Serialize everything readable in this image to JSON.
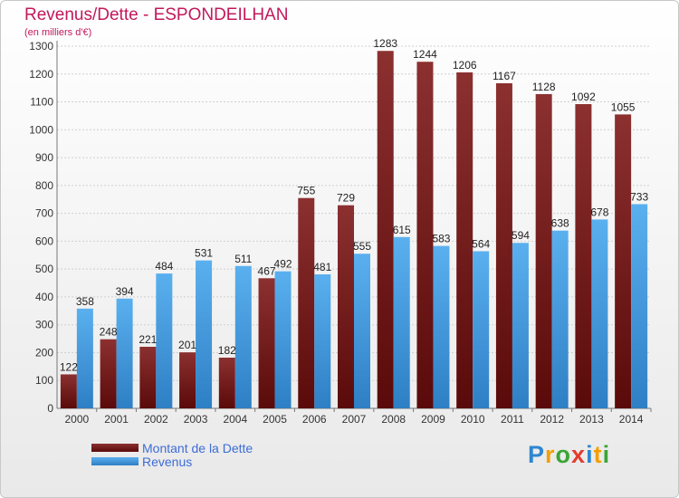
{
  "title": "Revenus/Dette - ESPONDEILHAN",
  "subtitle": "(en milliers d'€)",
  "logo": {
    "letters": [
      "P",
      "r",
      "o",
      "x",
      "i",
      "t",
      "i"
    ],
    "colors": [
      "#2e86d1",
      "#f2a000",
      "#3aa535",
      "#e23b2e",
      "#2e86d1",
      "#f2a000",
      "#3aa535"
    ]
  },
  "colors": {
    "dette": "#6e1111",
    "revenus": "#3b9be0"
  },
  "chart_data": {
    "type": "bar",
    "title": "Revenus/Dette - ESPONDEILHAN",
    "subtitle": "(en milliers d'€)",
    "categories": [
      "2000",
      "2001",
      "2002",
      "2003",
      "2004",
      "2005",
      "2006",
      "2007",
      "2008",
      "2009",
      "2010",
      "2011",
      "2012",
      "2013",
      "2014"
    ],
    "series": [
      {
        "name": "Montant de la Dette",
        "values": [
          122,
          248,
          221,
          201,
          182,
          467,
          755,
          729,
          1283,
          1244,
          1206,
          1167,
          1128,
          1092,
          1055
        ]
      },
      {
        "name": "Revenus",
        "values": [
          358,
          394,
          484,
          531,
          511,
          492,
          481,
          555,
          615,
          583,
          564,
          594,
          638,
          678,
          733
        ]
      }
    ],
    "ylim": [
      0,
      1300
    ],
    "yticks": [
      0,
      100,
      200,
      300,
      400,
      500,
      600,
      700,
      800,
      900,
      1000,
      1100,
      1200,
      1300
    ],
    "grid": true,
    "legend": "bottom-left"
  }
}
